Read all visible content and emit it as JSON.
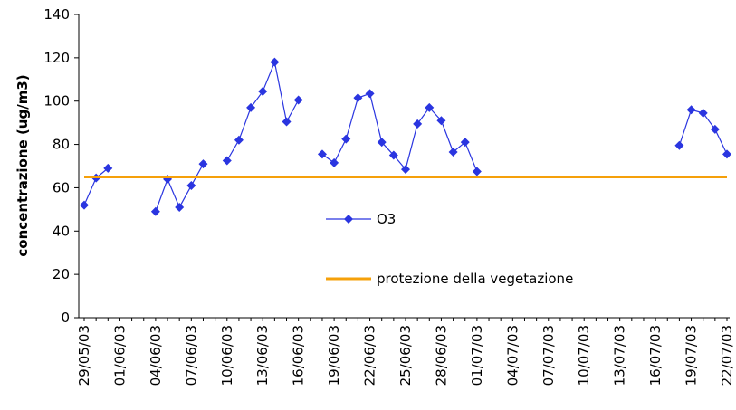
{
  "chart_data": {
    "type": "line",
    "ylabel": "concentrazione (ug/m3)",
    "categories": [
      "29/05/03",
      null,
      null,
      "01/06/03",
      null,
      null,
      "04/06/03",
      null,
      null,
      "07/06/03",
      null,
      null,
      "10/06/03",
      null,
      null,
      "13/06/03",
      null,
      null,
      "16/06/03",
      null,
      null,
      "19/06/03",
      null,
      null,
      "22/06/03",
      null,
      null,
      "25/06/03",
      null,
      null,
      "28/06/03",
      null,
      null,
      "01/07/03",
      null,
      null,
      "04/07/03",
      null,
      null,
      "07/07/03",
      null,
      null,
      "10/07/03",
      null,
      null,
      "13/07/03",
      null,
      null,
      "16/07/03",
      null,
      null,
      "19/07/03",
      null,
      null,
      "22/07/03"
    ],
    "series": [
      {
        "name": "O3",
        "color": "#2a35e0",
        "marker": "diamond",
        "values": [
          52,
          64.5,
          69,
          null,
          null,
          null,
          49,
          64,
          51,
          61,
          71,
          null,
          72.5,
          82,
          97,
          104.5,
          118,
          90.5,
          100.5,
          null,
          75.5,
          71.5,
          82.5,
          101.5,
          103.5,
          81,
          75,
          68.5,
          89.5,
          97,
          91,
          76.5,
          81,
          67.5,
          null,
          null,
          null,
          null,
          null,
          null,
          null,
          null,
          null,
          null,
          null,
          null,
          null,
          null,
          null,
          null,
          79.5,
          96,
          94.5,
          87,
          75.5
        ]
      },
      {
        "name": "protezione della vegetazione",
        "color": "#f5a00a",
        "marker": "none",
        "values": [
          65,
          65,
          65,
          65,
          65,
          65,
          65,
          65,
          65,
          65,
          65,
          65,
          65,
          65,
          65,
          65,
          65,
          65,
          65,
          65,
          65,
          65,
          65,
          65,
          65,
          65,
          65,
          65,
          65,
          65,
          65,
          65,
          65,
          65,
          65,
          65,
          65,
          65,
          65,
          65,
          65,
          65,
          65,
          65,
          65,
          65,
          65,
          65,
          65,
          65,
          65,
          65,
          65,
          65,
          65
        ]
      }
    ],
    "ylim": [
      0,
      140
    ],
    "yticks": [
      0,
      20,
      40,
      60,
      80,
      100,
      120,
      140
    ],
    "grid": false,
    "legend": "center"
  }
}
